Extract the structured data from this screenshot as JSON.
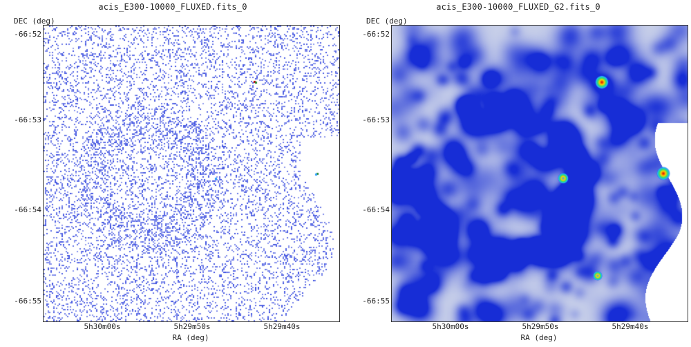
{
  "panels": [
    {
      "title": "acis_E300-10000_FLUXED.fits_0",
      "ylabel": "DEC (deg)",
      "xlabel": "RA (deg)",
      "yticks": [
        "-66:52",
        "-66:53",
        "-66:54",
        "-66:55"
      ],
      "xticks": [
        "5h30m00s",
        "5h29m50s",
        "5h29m40s"
      ],
      "style": "sparse-counts",
      "colors": {
        "low": "#3c4fe0",
        "mid": "#2aa0ff",
        "high": "#c00000"
      }
    },
    {
      "title": "acis_E300-10000_FLUXED_G2.fits_0",
      "ylabel": "DEC (deg)",
      "xlabel": "RA (deg)",
      "yticks": [
        "-66:52",
        "-66:53",
        "-66:54",
        "-66:55"
      ],
      "xticks": [
        "5h30m00s",
        "5h29m50s",
        "5h29m40s"
      ],
      "style": "smoothed",
      "colors": {
        "low": "#ffffff",
        "mid": "#1e32d6",
        "high": "#d80000"
      }
    }
  ]
}
